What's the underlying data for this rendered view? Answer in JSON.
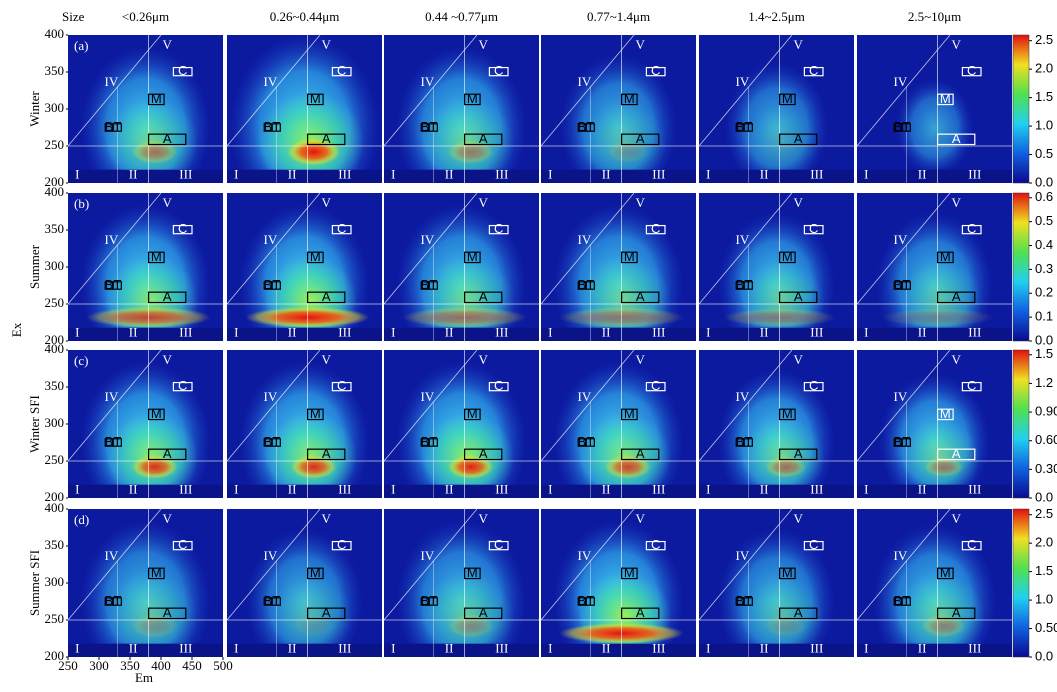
{
  "chart_data": {
    "type": "heatmap-grid",
    "size_label": "Size",
    "columns": [
      "<0.26μm",
      "0.26~0.44μm",
      "0.44 ~0.77μm",
      "0.77~1.4μm",
      "1.4~2.5μm",
      "2.5~10μm"
    ],
    "rows": [
      {
        "tag": "(a)",
        "name": "Winter",
        "clim": [
          0,
          2.6
        ],
        "cticks": [
          {
            "value": 0,
            "label": "0.0"
          },
          {
            "value": 0.5,
            "label": "0.5"
          },
          {
            "value": 1,
            "label": "1.0"
          },
          {
            "value": 1.5,
            "label": "1.5"
          },
          {
            "value": 2,
            "label": "2.0"
          },
          {
            "value": 2.5,
            "label": "2.5"
          }
        ]
      },
      {
        "tag": "(b)",
        "name": "Summer",
        "clim": [
          0,
          0.62
        ],
        "cticks": [
          {
            "value": 0,
            "label": "0.0"
          },
          0.1,
          0.2,
          0.3,
          0.4,
          0.5,
          0.6
        ]
      },
      {
        "tag": "(c)",
        "name": "Winter SFI",
        "clim": [
          0,
          1.55
        ],
        "cticks": [
          {
            "value": 0,
            "label": "0.0"
          },
          {
            "value": 0.3,
            "label": "0.30"
          },
          {
            "value": 0.6,
            "label": "0.60"
          },
          {
            "value": 0.9,
            "label": "0.90"
          },
          1.2,
          1.5
        ]
      },
      {
        "tag": "(d)",
        "name": "Summer SFI",
        "clim": [
          0,
          2.6
        ],
        "cticks": [
          {
            "value": 0,
            "label": "0.0"
          },
          {
            "value": 0.5,
            "label": "0.50"
          },
          {
            "value": 1,
            "label": "1.0"
          },
          1.5,
          {
            "value": 2,
            "label": "2.0"
          },
          2.5
        ]
      }
    ],
    "x_label": "Em",
    "y_label": "Ex",
    "xlim": [
      250,
      500
    ],
    "xticks": [
      250,
      300,
      350,
      400,
      450,
      500
    ],
    "ylim": [
      200,
      400
    ],
    "yticks": [
      200,
      250,
      300,
      350,
      400
    ],
    "region_labels": [
      "I",
      "II",
      "III",
      "IV",
      "V"
    ],
    "box_labels": [
      "B",
      "T",
      "M",
      "A",
      "C"
    ]
  }
}
